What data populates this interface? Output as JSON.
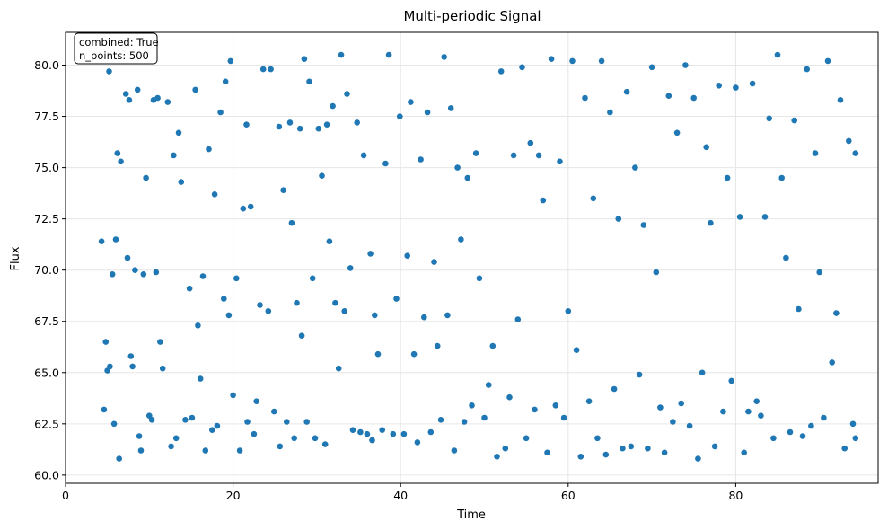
{
  "chart_data": {
    "type": "scatter",
    "title": "Multi-periodic Signal",
    "xlabel": "Time",
    "ylabel": "Flux",
    "xlim": [
      0,
      97
    ],
    "ylim": [
      59.6,
      81.6
    ],
    "xticks": [
      0,
      20,
      40,
      60,
      80
    ],
    "yticks": [
      60.0,
      62.5,
      65.0,
      67.5,
      70.0,
      72.5,
      75.0,
      77.5,
      80.0
    ],
    "grid": true,
    "marker_color": "#1f77b4",
    "annotation": {
      "line1": "combined: True",
      "line2": "n_points: 500",
      "position": "top-left"
    },
    "series": [
      {
        "points": [
          [
            4.3,
            71.4
          ],
          [
            4.6,
            63.2
          ],
          [
            4.8,
            66.5
          ],
          [
            5.0,
            65.1
          ],
          [
            5.2,
            79.7
          ],
          [
            5.3,
            65.3
          ],
          [
            5.6,
            69.8
          ],
          [
            5.8,
            62.5
          ],
          [
            6.0,
            71.5
          ],
          [
            6.2,
            75.7
          ],
          [
            6.4,
            60.8
          ],
          [
            6.6,
            75.3
          ],
          [
            7.2,
            78.6
          ],
          [
            7.4,
            70.6
          ],
          [
            7.6,
            78.3
          ],
          [
            7.8,
            65.8
          ],
          [
            8.0,
            65.3
          ],
          [
            8.3,
            70.0
          ],
          [
            8.6,
            78.8
          ],
          [
            8.8,
            61.9
          ],
          [
            9.0,
            61.2
          ],
          [
            9.3,
            69.8
          ],
          [
            9.6,
            74.5
          ],
          [
            10.0,
            62.9
          ],
          [
            10.3,
            62.7
          ],
          [
            10.5,
            78.3
          ],
          [
            10.8,
            69.9
          ],
          [
            11.0,
            78.4
          ],
          [
            11.3,
            66.5
          ],
          [
            11.6,
            65.2
          ],
          [
            12.2,
            78.2
          ],
          [
            12.6,
            61.4
          ],
          [
            12.9,
            75.6
          ],
          [
            13.2,
            61.8
          ],
          [
            13.5,
            76.7
          ],
          [
            13.8,
            74.3
          ],
          [
            14.3,
            62.7
          ],
          [
            14.8,
            69.1
          ],
          [
            15.1,
            62.8
          ],
          [
            15.5,
            78.8
          ],
          [
            15.8,
            67.3
          ],
          [
            16.1,
            64.7
          ],
          [
            16.4,
            69.7
          ],
          [
            16.7,
            61.2
          ],
          [
            17.1,
            75.9
          ],
          [
            17.5,
            62.2
          ],
          [
            17.8,
            73.7
          ],
          [
            18.1,
            62.4
          ],
          [
            18.5,
            77.7
          ],
          [
            18.9,
            68.6
          ],
          [
            19.1,
            79.2
          ],
          [
            19.5,
            67.8
          ],
          [
            19.7,
            80.2
          ],
          [
            20.0,
            63.9
          ],
          [
            20.4,
            69.6
          ],
          [
            20.8,
            61.2
          ],
          [
            21.2,
            73.0
          ],
          [
            21.6,
            77.1
          ],
          [
            21.7,
            62.6
          ],
          [
            22.1,
            73.1
          ],
          [
            22.5,
            62.0
          ],
          [
            22.8,
            63.6
          ],
          [
            23.2,
            68.3
          ],
          [
            23.6,
            79.8
          ],
          [
            24.2,
            68.0
          ],
          [
            24.5,
            79.8
          ],
          [
            24.9,
            63.1
          ],
          [
            25.5,
            77.0
          ],
          [
            25.6,
            61.4
          ],
          [
            26.0,
            73.9
          ],
          [
            26.4,
            62.6
          ],
          [
            26.8,
            77.2
          ],
          [
            27.0,
            72.3
          ],
          [
            27.3,
            61.8
          ],
          [
            27.6,
            68.4
          ],
          [
            28.0,
            76.9
          ],
          [
            28.2,
            66.8
          ],
          [
            28.5,
            80.3
          ],
          [
            28.8,
            62.6
          ],
          [
            29.1,
            79.2
          ],
          [
            29.5,
            69.6
          ],
          [
            29.8,
            61.8
          ],
          [
            30.2,
            76.9
          ],
          [
            30.6,
            74.6
          ],
          [
            31.0,
            61.5
          ],
          [
            31.2,
            77.1
          ],
          [
            31.5,
            71.4
          ],
          [
            31.9,
            78.0
          ],
          [
            32.2,
            68.4
          ],
          [
            32.6,
            65.2
          ],
          [
            32.9,
            80.5
          ],
          [
            33.3,
            68.0
          ],
          [
            33.6,
            78.6
          ],
          [
            34.0,
            70.1
          ],
          [
            34.3,
            62.2
          ],
          [
            34.8,
            77.2
          ],
          [
            35.2,
            62.1
          ],
          [
            35.6,
            75.6
          ],
          [
            36.0,
            62.0
          ],
          [
            36.4,
            70.8
          ],
          [
            36.6,
            61.7
          ],
          [
            36.9,
            67.8
          ],
          [
            37.3,
            65.9
          ],
          [
            37.8,
            62.2
          ],
          [
            38.2,
            75.2
          ],
          [
            38.6,
            80.5
          ],
          [
            39.1,
            62.0
          ],
          [
            39.5,
            68.6
          ],
          [
            39.9,
            77.5
          ],
          [
            40.4,
            62.0
          ],
          [
            40.8,
            70.7
          ],
          [
            41.2,
            78.2
          ],
          [
            41.6,
            65.9
          ],
          [
            42.0,
            61.6
          ],
          [
            42.4,
            75.4
          ],
          [
            42.8,
            67.7
          ],
          [
            43.2,
            77.7
          ],
          [
            43.6,
            62.1
          ],
          [
            44.0,
            70.4
          ],
          [
            44.4,
            66.3
          ],
          [
            44.8,
            62.7
          ],
          [
            45.2,
            80.4
          ],
          [
            45.6,
            67.8
          ],
          [
            46.0,
            77.9
          ],
          [
            46.4,
            61.2
          ],
          [
            46.8,
            75.0
          ],
          [
            47.2,
            71.5
          ],
          [
            47.6,
            62.6
          ],
          [
            48.0,
            74.5
          ],
          [
            48.5,
            63.4
          ],
          [
            49.0,
            75.7
          ],
          [
            49.4,
            69.6
          ],
          [
            50.0,
            62.8
          ],
          [
            50.5,
            64.4
          ]
        ]
      },
      {
        "points": [
          [
            51.0,
            66.3
          ],
          [
            51.5,
            60.9
          ],
          [
            52.0,
            79.7
          ],
          [
            52.5,
            61.3
          ],
          [
            53.0,
            63.8
          ],
          [
            53.5,
            75.6
          ],
          [
            54.0,
            67.6
          ],
          [
            54.5,
            79.9
          ],
          [
            55.0,
            61.8
          ],
          [
            55.5,
            76.2
          ],
          [
            56.0,
            63.2
          ],
          [
            56.5,
            75.6
          ],
          [
            57.0,
            73.4
          ],
          [
            57.5,
            61.1
          ],
          [
            58.0,
            80.3
          ],
          [
            58.5,
            63.4
          ],
          [
            59.0,
            75.3
          ],
          [
            59.5,
            62.8
          ],
          [
            60.0,
            68.0
          ],
          [
            60.5,
            80.2
          ],
          [
            61.0,
            66.1
          ],
          [
            61.5,
            60.9
          ],
          [
            62.0,
            78.4
          ],
          [
            62.5,
            63.6
          ],
          [
            63.0,
            73.5
          ],
          [
            63.5,
            61.8
          ],
          [
            64.0,
            80.2
          ],
          [
            64.5,
            61.0
          ],
          [
            65.0,
            77.7
          ],
          [
            65.5,
            64.2
          ],
          [
            66.0,
            72.5
          ],
          [
            66.5,
            61.3
          ],
          [
            67.0,
            78.7
          ],
          [
            67.5,
            61.4
          ],
          [
            68.0,
            75.0
          ],
          [
            68.5,
            64.9
          ],
          [
            69.0,
            72.2
          ],
          [
            69.5,
            61.3
          ],
          [
            70.0,
            79.9
          ],
          [
            70.5,
            69.9
          ],
          [
            71.0,
            63.3
          ],
          [
            71.5,
            61.1
          ],
          [
            72.0,
            78.5
          ],
          [
            72.5,
            62.6
          ],
          [
            73.0,
            76.7
          ],
          [
            73.5,
            63.5
          ],
          [
            74.0,
            80.0
          ],
          [
            74.5,
            62.4
          ],
          [
            75.0,
            78.4
          ],
          [
            75.5,
            60.8
          ],
          [
            76.0,
            65.0
          ],
          [
            76.5,
            76.0
          ],
          [
            77.0,
            72.3
          ],
          [
            77.5,
            61.4
          ],
          [
            78.0,
            79.0
          ],
          [
            78.5,
            63.1
          ],
          [
            79.0,
            74.5
          ],
          [
            79.5,
            64.6
          ],
          [
            80.0,
            78.9
          ],
          [
            80.5,
            72.6
          ],
          [
            81.0,
            61.1
          ],
          [
            81.5,
            63.1
          ],
          [
            82.0,
            79.1
          ],
          [
            82.5,
            63.6
          ],
          [
            83.0,
            62.9
          ],
          [
            83.5,
            72.6
          ],
          [
            84.0,
            77.4
          ],
          [
            84.5,
            61.8
          ],
          [
            85.0,
            80.5
          ],
          [
            85.5,
            74.5
          ],
          [
            86.0,
            70.6
          ],
          [
            86.5,
            62.1
          ],
          [
            87.0,
            77.3
          ],
          [
            87.5,
            68.1
          ],
          [
            88.0,
            61.9
          ],
          [
            88.5,
            79.8
          ],
          [
            89.0,
            62.4
          ],
          [
            89.5,
            75.7
          ],
          [
            90.0,
            69.9
          ],
          [
            90.5,
            62.8
          ],
          [
            91.0,
            80.2
          ],
          [
            91.5,
            65.5
          ],
          [
            92.0,
            67.9
          ],
          [
            92.5,
            78.3
          ],
          [
            93.0,
            61.3
          ],
          [
            93.5,
            76.3
          ],
          [
            94.0,
            62.5
          ],
          [
            94.3,
            61.8
          ],
          [
            94.3,
            75.7
          ]
        ]
      }
    ]
  }
}
